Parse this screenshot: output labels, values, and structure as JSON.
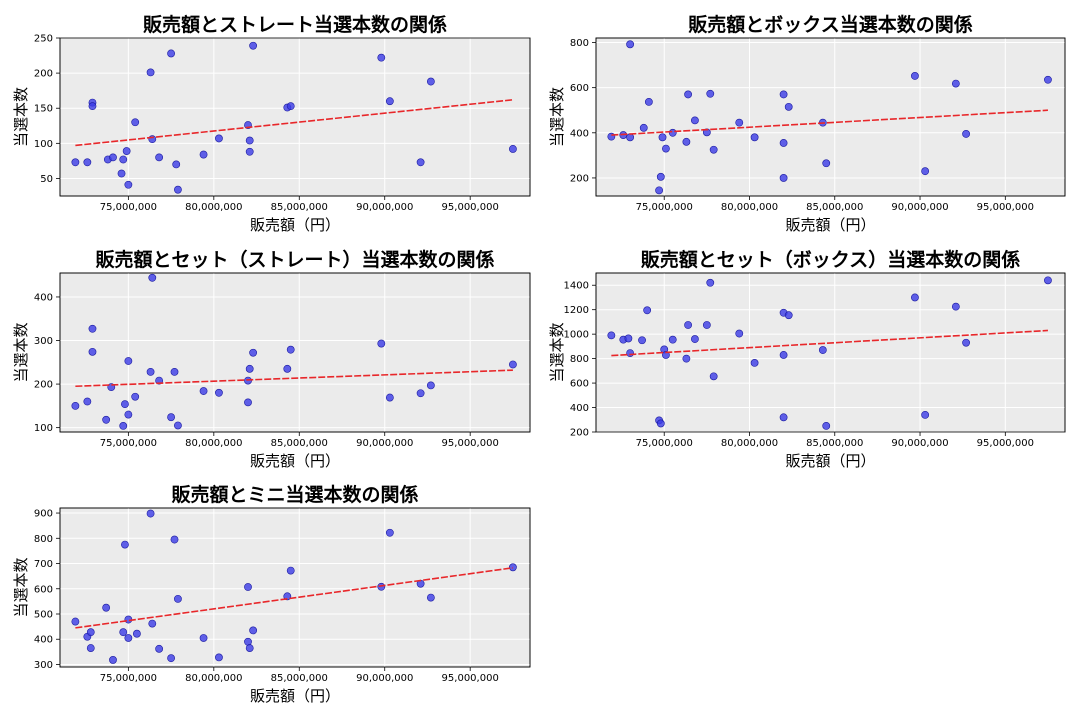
{
  "chart_data": [
    {
      "type": "scatter",
      "title": "販売額とストレート当選本数の関係",
      "xlabel": "販売額（円）",
      "ylabel": "当選本数",
      "xlim": [
        71000000,
        98500000
      ],
      "ylim": [
        25,
        250
      ],
      "xticks": [
        75000000,
        80000000,
        85000000,
        90000000,
        95000000
      ],
      "xtick_labels": [
        "75,000,000",
        "80,000,000",
        "85,000,000",
        "90,000,000",
        "95,000,000"
      ],
      "yticks": [
        50,
        100,
        150,
        200,
        250
      ],
      "ytick_labels": [
        "50",
        "100",
        "150",
        "200",
        "250"
      ],
      "grid": true,
      "points": [
        {
          "x": 71900000,
          "y": 73
        },
        {
          "x": 72600000,
          "y": 73
        },
        {
          "x": 72900000,
          "y": 158
        },
        {
          "x": 72900000,
          "y": 153
        },
        {
          "x": 73800000,
          "y": 77
        },
        {
          "x": 74100000,
          "y": 80
        },
        {
          "x": 74600000,
          "y": 57
        },
        {
          "x": 74700000,
          "y": 77
        },
        {
          "x": 74900000,
          "y": 89
        },
        {
          "x": 75000000,
          "y": 41
        },
        {
          "x": 75400000,
          "y": 130
        },
        {
          "x": 76300000,
          "y": 201
        },
        {
          "x": 76400000,
          "y": 106
        },
        {
          "x": 76800000,
          "y": 80
        },
        {
          "x": 77500000,
          "y": 228
        },
        {
          "x": 77800000,
          "y": 70
        },
        {
          "x": 77900000,
          "y": 34
        },
        {
          "x": 79400000,
          "y": 84
        },
        {
          "x": 80300000,
          "y": 107
        },
        {
          "x": 82000000,
          "y": 126
        },
        {
          "x": 82100000,
          "y": 104
        },
        {
          "x": 82100000,
          "y": 88
        },
        {
          "x": 82300000,
          "y": 239
        },
        {
          "x": 84300000,
          "y": 151
        },
        {
          "x": 84500000,
          "y": 153
        },
        {
          "x": 89800000,
          "y": 222
        },
        {
          "x": 90300000,
          "y": 160
        },
        {
          "x": 92100000,
          "y": 73
        },
        {
          "x": 92700000,
          "y": 188
        },
        {
          "x": 97500000,
          "y": 92
        }
      ],
      "trend": {
        "x": [
          71900000,
          97500000
        ],
        "y": [
          97,
          162
        ]
      }
    },
    {
      "type": "scatter",
      "title": "販売額とボックス当選本数の関係",
      "xlabel": "販売額（円）",
      "ylabel": "当選本数",
      "xlim": [
        71000000,
        98500000
      ],
      "ylim": [
        120,
        820
      ],
      "xticks": [
        75000000,
        80000000,
        85000000,
        90000000,
        95000000
      ],
      "xtick_labels": [
        "75,000,000",
        "80,000,000",
        "85,000,000",
        "90,000,000",
        "95,000,000"
      ],
      "yticks": [
        200,
        400,
        600,
        800
      ],
      "ytick_labels": [
        "200",
        "400",
        "600",
        "800"
      ],
      "grid": true,
      "points": [
        {
          "x": 71900000,
          "y": 383
        },
        {
          "x": 72600000,
          "y": 390
        },
        {
          "x": 73000000,
          "y": 380
        },
        {
          "x": 73000000,
          "y": 792
        },
        {
          "x": 73800000,
          "y": 422
        },
        {
          "x": 74100000,
          "y": 537
        },
        {
          "x": 74700000,
          "y": 145
        },
        {
          "x": 74800000,
          "y": 205
        },
        {
          "x": 74900000,
          "y": 380
        },
        {
          "x": 75100000,
          "y": 330
        },
        {
          "x": 75500000,
          "y": 400
        },
        {
          "x": 76300000,
          "y": 360
        },
        {
          "x": 76400000,
          "y": 570
        },
        {
          "x": 76800000,
          "y": 455
        },
        {
          "x": 77500000,
          "y": 402
        },
        {
          "x": 77700000,
          "y": 573
        },
        {
          "x": 77900000,
          "y": 325
        },
        {
          "x": 79400000,
          "y": 445
        },
        {
          "x": 80300000,
          "y": 380
        },
        {
          "x": 82000000,
          "y": 570
        },
        {
          "x": 82000000,
          "y": 355
        },
        {
          "x": 82000000,
          "y": 200
        },
        {
          "x": 82300000,
          "y": 515
        },
        {
          "x": 84300000,
          "y": 445
        },
        {
          "x": 84500000,
          "y": 265
        },
        {
          "x": 89700000,
          "y": 652
        },
        {
          "x": 90300000,
          "y": 230
        },
        {
          "x": 92100000,
          "y": 618
        },
        {
          "x": 92700000,
          "y": 395
        },
        {
          "x": 97500000,
          "y": 635
        }
      ],
      "trend": {
        "x": [
          71900000,
          97500000
        ],
        "y": [
          390,
          500
        ]
      }
    },
    {
      "type": "scatter",
      "title": "販売額とセット（ストレート）当選本数の関係",
      "xlabel": "販売額（円）",
      "ylabel": "当選本数",
      "xlim": [
        71000000,
        98500000
      ],
      "ylim": [
        90,
        455
      ],
      "xticks": [
        75000000,
        80000000,
        85000000,
        90000000,
        95000000
      ],
      "xtick_labels": [
        "75,000,000",
        "80,000,000",
        "85,000,000",
        "90,000,000",
        "95,000,000"
      ],
      "yticks": [
        100,
        200,
        300,
        400
      ],
      "ytick_labels": [
        "100",
        "200",
        "300",
        "400"
      ],
      "grid": true,
      "points": [
        {
          "x": 71900000,
          "y": 150
        },
        {
          "x": 72600000,
          "y": 160
        },
        {
          "x": 72900000,
          "y": 327
        },
        {
          "x": 72900000,
          "y": 274
        },
        {
          "x": 73700000,
          "y": 118
        },
        {
          "x": 74000000,
          "y": 193
        },
        {
          "x": 74700000,
          "y": 104
        },
        {
          "x": 74800000,
          "y": 154
        },
        {
          "x": 75000000,
          "y": 253
        },
        {
          "x": 75000000,
          "y": 130
        },
        {
          "x": 75400000,
          "y": 171
        },
        {
          "x": 76300000,
          "y": 228
        },
        {
          "x": 76400000,
          "y": 444
        },
        {
          "x": 76800000,
          "y": 208
        },
        {
          "x": 77500000,
          "y": 124
        },
        {
          "x": 77700000,
          "y": 228
        },
        {
          "x": 77900000,
          "y": 105
        },
        {
          "x": 79400000,
          "y": 184
        },
        {
          "x": 80300000,
          "y": 180
        },
        {
          "x": 82000000,
          "y": 208
        },
        {
          "x": 82000000,
          "y": 158
        },
        {
          "x": 82100000,
          "y": 235
        },
        {
          "x": 82300000,
          "y": 272
        },
        {
          "x": 84300000,
          "y": 235
        },
        {
          "x": 84500000,
          "y": 279
        },
        {
          "x": 89800000,
          "y": 293
        },
        {
          "x": 90300000,
          "y": 169
        },
        {
          "x": 92100000,
          "y": 179
        },
        {
          "x": 92700000,
          "y": 197
        },
        {
          "x": 97500000,
          "y": 245
        }
      ],
      "trend": {
        "x": [
          71900000,
          97500000
        ],
        "y": [
          195,
          232
        ]
      }
    },
    {
      "type": "scatter",
      "title": "販売額とセット（ボックス）当選本数の関係",
      "xlabel": "販売額（円）",
      "ylabel": "当選本数",
      "xlim": [
        71000000,
        98500000
      ],
      "ylim": [
        200,
        1500
      ],
      "xticks": [
        75000000,
        80000000,
        85000000,
        90000000,
        95000000
      ],
      "xtick_labels": [
        "75,000,000",
        "80,000,000",
        "85,000,000",
        "90,000,000",
        "95,000,000"
      ],
      "yticks": [
        200,
        400,
        600,
        800,
        1000,
        1200,
        1400
      ],
      "ytick_labels": [
        "200",
        "400",
        "600",
        "800",
        "1000",
        "1200",
        "1400"
      ],
      "grid": true,
      "points": [
        {
          "x": 71900000,
          "y": 990
        },
        {
          "x": 72600000,
          "y": 955
        },
        {
          "x": 72900000,
          "y": 965
        },
        {
          "x": 73000000,
          "y": 845
        },
        {
          "x": 73700000,
          "y": 950
        },
        {
          "x": 74000000,
          "y": 1195
        },
        {
          "x": 74700000,
          "y": 295
        },
        {
          "x": 74800000,
          "y": 270
        },
        {
          "x": 75000000,
          "y": 875
        },
        {
          "x": 75100000,
          "y": 830
        },
        {
          "x": 75500000,
          "y": 955
        },
        {
          "x": 76300000,
          "y": 800
        },
        {
          "x": 76400000,
          "y": 1075
        },
        {
          "x": 76800000,
          "y": 960
        },
        {
          "x": 77500000,
          "y": 1075
        },
        {
          "x": 77700000,
          "y": 1420
        },
        {
          "x": 77900000,
          "y": 655
        },
        {
          "x": 79400000,
          "y": 1005
        },
        {
          "x": 80300000,
          "y": 765
        },
        {
          "x": 82000000,
          "y": 1175
        },
        {
          "x": 82000000,
          "y": 830
        },
        {
          "x": 82000000,
          "y": 320
        },
        {
          "x": 82300000,
          "y": 1155
        },
        {
          "x": 84300000,
          "y": 870
        },
        {
          "x": 84500000,
          "y": 250
        },
        {
          "x": 89700000,
          "y": 1300
        },
        {
          "x": 90300000,
          "y": 340
        },
        {
          "x": 92100000,
          "y": 1225
        },
        {
          "x": 92700000,
          "y": 930
        },
        {
          "x": 97500000,
          "y": 1440
        }
      ],
      "trend": {
        "x": [
          71900000,
          97500000
        ],
        "y": [
          825,
          1030
        ]
      }
    },
    {
      "type": "scatter",
      "title": "販売額とミニ当選本数の関係",
      "xlabel": "販売額（円）",
      "ylabel": "当選本数",
      "xlim": [
        71000000,
        98500000
      ],
      "ylim": [
        290,
        920
      ],
      "xticks": [
        75000000,
        80000000,
        85000000,
        90000000,
        95000000
      ],
      "xtick_labels": [
        "75,000,000",
        "80,000,000",
        "85,000,000",
        "90,000,000",
        "95,000,000"
      ],
      "yticks": [
        300,
        400,
        500,
        600,
        700,
        800,
        900
      ],
      "ytick_labels": [
        "300",
        "400",
        "500",
        "600",
        "700",
        "800",
        "900"
      ],
      "grid": true,
      "points": [
        {
          "x": 71900000,
          "y": 470
        },
        {
          "x": 72600000,
          "y": 410
        },
        {
          "x": 72800000,
          "y": 428
        },
        {
          "x": 72800000,
          "y": 365
        },
        {
          "x": 73700000,
          "y": 525
        },
        {
          "x": 74100000,
          "y": 318
        },
        {
          "x": 74700000,
          "y": 428
        },
        {
          "x": 74800000,
          "y": 775
        },
        {
          "x": 75000000,
          "y": 478
        },
        {
          "x": 75000000,
          "y": 405
        },
        {
          "x": 75500000,
          "y": 422
        },
        {
          "x": 76300000,
          "y": 898
        },
        {
          "x": 76400000,
          "y": 462
        },
        {
          "x": 76800000,
          "y": 362
        },
        {
          "x": 77500000,
          "y": 325
        },
        {
          "x": 77700000,
          "y": 795
        },
        {
          "x": 77900000,
          "y": 560
        },
        {
          "x": 79400000,
          "y": 405
        },
        {
          "x": 80300000,
          "y": 328
        },
        {
          "x": 82000000,
          "y": 607
        },
        {
          "x": 82000000,
          "y": 390
        },
        {
          "x": 82100000,
          "y": 365
        },
        {
          "x": 82300000,
          "y": 435
        },
        {
          "x": 84300000,
          "y": 570
        },
        {
          "x": 84500000,
          "y": 672
        },
        {
          "x": 89800000,
          "y": 608
        },
        {
          "x": 90300000,
          "y": 822
        },
        {
          "x": 92100000,
          "y": 620
        },
        {
          "x": 92700000,
          "y": 565
        },
        {
          "x": 97500000,
          "y": 685
        }
      ],
      "trend": {
        "x": [
          71900000,
          97500000
        ],
        "y": [
          445,
          683
        ]
      }
    }
  ]
}
